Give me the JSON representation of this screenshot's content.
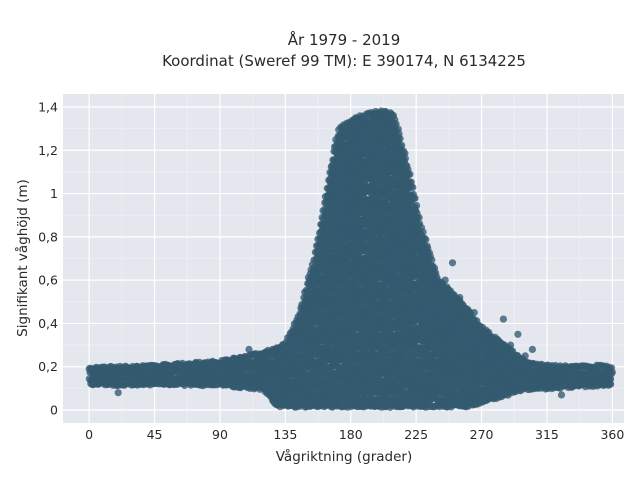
{
  "chart_data": {
    "type": "scatter",
    "title_lines": [
      "År 1979 - 2019",
      "Koordinat (Sweref 99 TM): E 390174, N 6134225"
    ],
    "xlabel": "Vågriktning (grader)",
    "ylabel": "Signifikant våghöjd (m)",
    "xlim": [
      -18,
      368
    ],
    "ylim": [
      -0.06,
      1.46
    ],
    "x_ticks": [
      0,
      45,
      90,
      135,
      180,
      225,
      270,
      315,
      360
    ],
    "x_tick_labels": [
      "0",
      "45",
      "90",
      "135",
      "180",
      "225",
      "270",
      "315",
      "360"
    ],
    "y_ticks": [
      0,
      0.2,
      0.4,
      0.6,
      0.8,
      1.0,
      1.2,
      1.4
    ],
    "y_tick_labels": [
      "0",
      "0,2",
      "0,4",
      "0,6",
      "0,8",
      "1",
      "1,2",
      "1,4"
    ],
    "grid": true,
    "colors": {
      "marker": "#335a70",
      "plot_bg": "#e5e7ef",
      "grid": "#ffffff"
    },
    "envelope_upper": [
      [
        0,
        0.19
      ],
      [
        45,
        0.2
      ],
      [
        90,
        0.22
      ],
      [
        120,
        0.26
      ],
      [
        135,
        0.3
      ],
      [
        145,
        0.45
      ],
      [
        155,
        0.7
      ],
      [
        162,
        0.95
      ],
      [
        167,
        1.15
      ],
      [
        172,
        1.3
      ],
      [
        185,
        1.35
      ],
      [
        200,
        1.38
      ],
      [
        210,
        1.36
      ],
      [
        220,
        1.1
      ],
      [
        228,
        0.85
      ],
      [
        240,
        0.6
      ],
      [
        255,
        0.5
      ],
      [
        270,
        0.38
      ],
      [
        285,
        0.3
      ],
      [
        300,
        0.22
      ],
      [
        315,
        0.2
      ],
      [
        360,
        0.2
      ]
    ],
    "envelope_lower": [
      [
        0,
        0.12
      ],
      [
        45,
        0.12
      ],
      [
        90,
        0.12
      ],
      [
        120,
        0.1
      ],
      [
        130,
        0.02
      ],
      [
        260,
        0.02
      ],
      [
        280,
        0.06
      ],
      [
        300,
        0.1
      ],
      [
        360,
        0.12
      ]
    ],
    "outlier_points": [
      [
        150,
        0.45
      ],
      [
        155,
        0.5
      ],
      [
        148,
        0.32
      ],
      [
        240,
        0.55
      ],
      [
        245,
        0.6
      ],
      [
        250,
        0.68
      ],
      [
        255,
        0.52
      ],
      [
        265,
        0.45
      ],
      [
        270,
        0.35
      ],
      [
        285,
        0.42
      ],
      [
        290,
        0.3
      ],
      [
        295,
        0.35
      ],
      [
        300,
        0.25
      ],
      [
        305,
        0.28
      ],
      [
        20,
        0.08
      ],
      [
        50,
        0.2
      ],
      [
        65,
        0.19
      ],
      [
        110,
        0.28
      ],
      [
        325,
        0.07
      ],
      [
        350,
        0.2
      ],
      [
        225,
        0.1
      ],
      [
        230,
        0.65
      ]
    ]
  }
}
